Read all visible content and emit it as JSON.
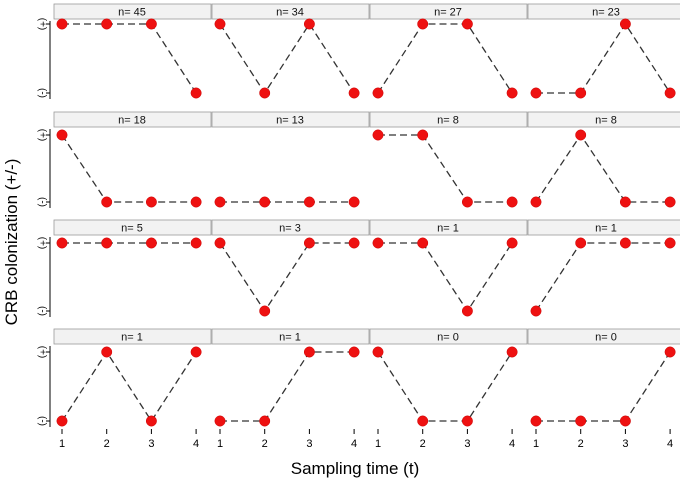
{
  "chart_data": {
    "type": "line",
    "xlabel": "Sampling time (t)",
    "ylabel": "CRB colonization (+/-)",
    "x": [
      1,
      2,
      3,
      4
    ],
    "x_tick_labels": [
      "1",
      "2",
      "3",
      "4"
    ],
    "y_categories": [
      "(-)",
      "(+)"
    ],
    "y_tick_labels": [
      "(-)",
      "(+)"
    ],
    "layout": "4x4 facet grid",
    "marker_color": "#ee1111",
    "line_color": "#333333",
    "line_style": "dashed",
    "panels": [
      {
        "label": "n= 45",
        "values": [
          1,
          1,
          1,
          0
        ]
      },
      {
        "label": "n= 34",
        "values": [
          1,
          0,
          1,
          0
        ]
      },
      {
        "label": "n= 27",
        "values": [
          0,
          1,
          1,
          0
        ]
      },
      {
        "label": "n= 23",
        "values": [
          0,
          0,
          1,
          0
        ]
      },
      {
        "label": "n= 18",
        "values": [
          1,
          0,
          0,
          0
        ]
      },
      {
        "label": "n= 13",
        "values": [
          0,
          0,
          0,
          0
        ]
      },
      {
        "label": "n= 8",
        "values": [
          1,
          1,
          0,
          0
        ]
      },
      {
        "label": "n= 8",
        "values": [
          0,
          1,
          0,
          0
        ]
      },
      {
        "label": "n= 5",
        "values": [
          1,
          1,
          1,
          1
        ]
      },
      {
        "label": "n= 3",
        "values": [
          1,
          0,
          1,
          1
        ]
      },
      {
        "label": "n= 1",
        "values": [
          1,
          1,
          0,
          1
        ]
      },
      {
        "label": "n= 1",
        "values": [
          0,
          1,
          1,
          1
        ]
      },
      {
        "label": "n= 1",
        "values": [
          0,
          1,
          0,
          1
        ]
      },
      {
        "label": "n= 1",
        "values": [
          0,
          0,
          1,
          1
        ]
      },
      {
        "label": "n= 0",
        "values": [
          1,
          0,
          0,
          1
        ]
      },
      {
        "label": "n= 0",
        "values": [
          0,
          0,
          0,
          1
        ]
      }
    ]
  }
}
